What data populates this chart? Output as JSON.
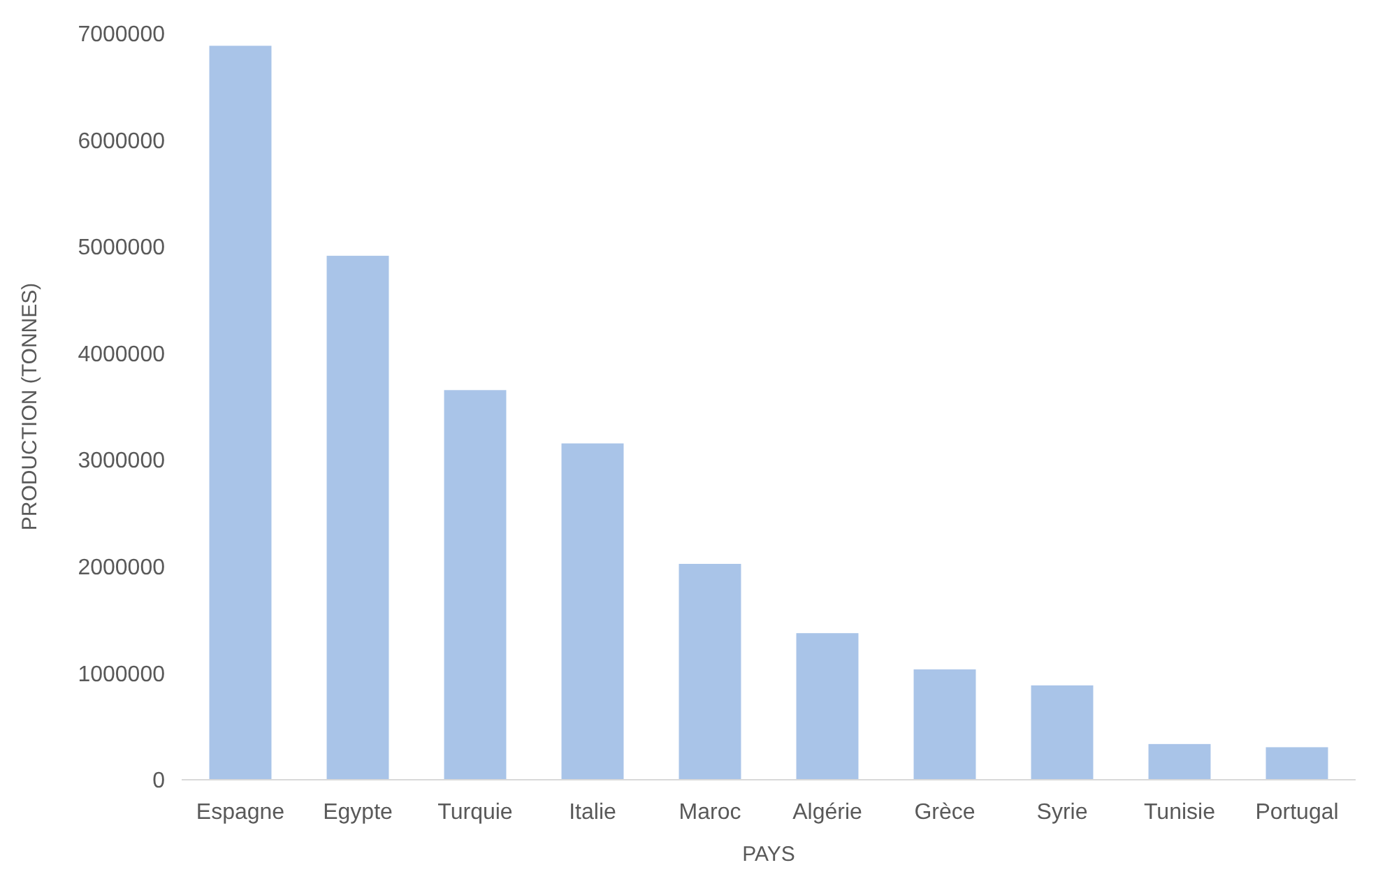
{
  "chart_data": {
    "type": "bar",
    "xlabel": "PAYS",
    "ylabel": "PRODUCTION (TONNES)",
    "categories": [
      "Espagne",
      "Egypte",
      "Turquie",
      "Italie",
      "Maroc",
      "Algérie",
      "Grèce",
      "Syrie",
      "Tunisie",
      "Portugal"
    ],
    "values": [
      6880000,
      4910000,
      3650000,
      3150000,
      2020000,
      1370000,
      1030000,
      880000,
      330000,
      300000
    ],
    "color": "#a9c4e8",
    "ylim": [
      0,
      7000000
    ],
    "yticks": [
      0,
      1000000,
      2000000,
      3000000,
      4000000,
      5000000,
      6000000,
      7000000
    ],
    "grid": false
  }
}
